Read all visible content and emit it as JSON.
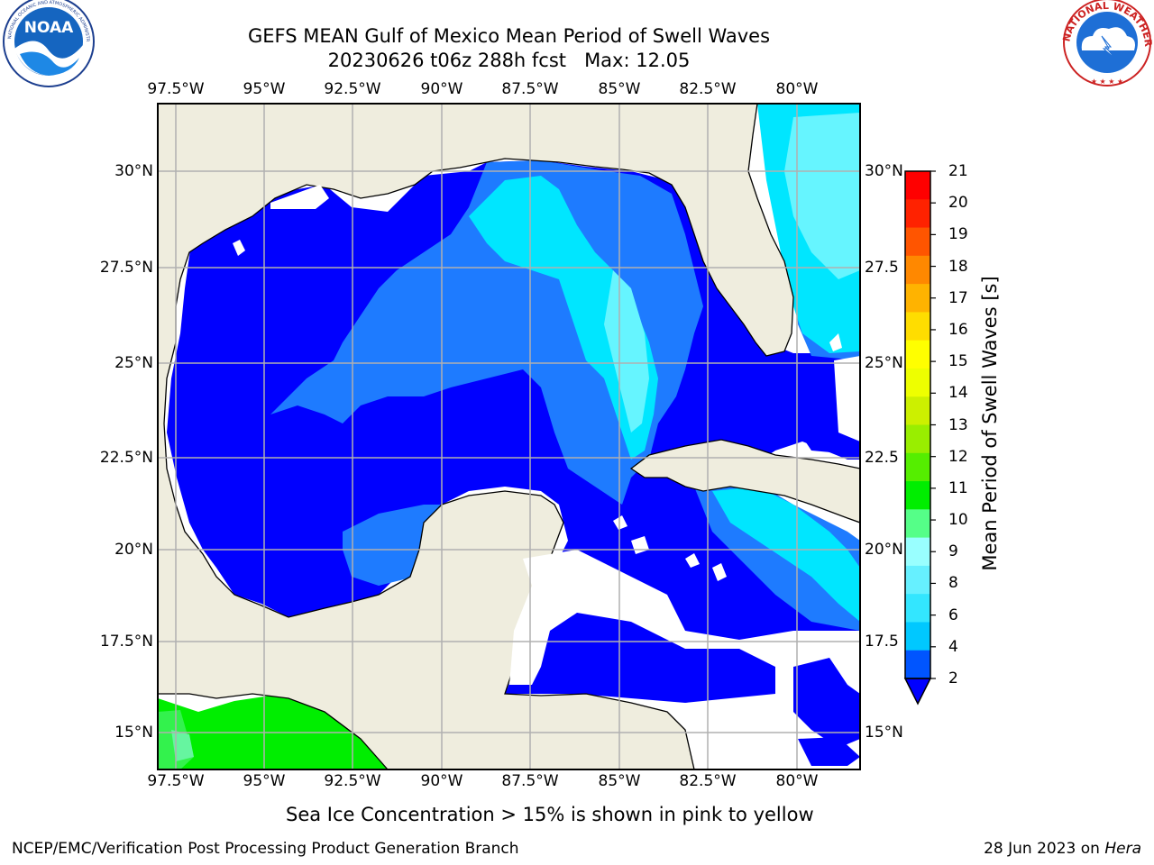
{
  "title_line1": "GEFS MEAN Gulf of Mexico Mean Period of Swell Waves",
  "title_run": "20230626 t06z 288h fcst",
  "title_max": "Max: 12.05",
  "top_ticks": [
    "97.5°W",
    "95°W",
    "92.5°W",
    "90°W",
    "87.5°W",
    "85°W",
    "82.5°W",
    "80°W"
  ],
  "bottom_ticks": [
    "97.5°W",
    "95°W",
    "92.5°W",
    "90°W",
    "87.5°W",
    "85°W",
    "82.5°W",
    "80°W"
  ],
  "left_ticks": [
    "30°N",
    "27.5°N",
    "25°N",
    "22.5°N",
    "20°N",
    "17.5°N",
    "15°N"
  ],
  "right_ticks": [
    "30°N",
    "27.5",
    "25°N",
    "22.5",
    "20°N",
    "17.5",
    "15°N"
  ],
  "colorbar": {
    "label": "Mean Period of Swell Waves [s]",
    "ticks": [
      "2",
      "4",
      "6",
      "8",
      "9",
      "10",
      "11",
      "12",
      "13",
      "14",
      "15",
      "16",
      "17",
      "18",
      "19",
      "20",
      "21"
    ],
    "colors": [
      "#0055ff",
      "#00c8ff",
      "#33e6ff",
      "#66f0ff",
      "#99ffff",
      "#55ff88",
      "#00ee00",
      "#55ee00",
      "#99ee00",
      "#ccf000",
      "#eeff00",
      "#ffff00",
      "#ffdd00",
      "#ffb300",
      "#ff8800",
      "#ff5500",
      "#ff2200",
      "#ff0000"
    ],
    "extend_color": "#0000ff"
  },
  "note": "Sea Ice Concentration > 15% is shown in pink to yellow",
  "footer_left": "NCEP/EMC/Verification Post Processing Product Generation Branch",
  "footer_date": "28 Jun 2023 on",
  "footer_machine": "Hera",
  "logos": {
    "noaa_text": "NOAA",
    "noaa_ring": "NATIONAL OCEANIC AND ATMOSPHERIC ADMINISTRATION · U.S. DEPARTMENT OF COMMERCE",
    "nws_ring": "NATIONAL WEATHER SERVICE"
  },
  "map_colors": {
    "land": "#efedde",
    "deep": "#0000ff",
    "mid": "#1e7bff",
    "cyan": "#00e6ff",
    "light": "#66f5ff",
    "green": "#00ee00",
    "grid": "#b0b0b0"
  }
}
